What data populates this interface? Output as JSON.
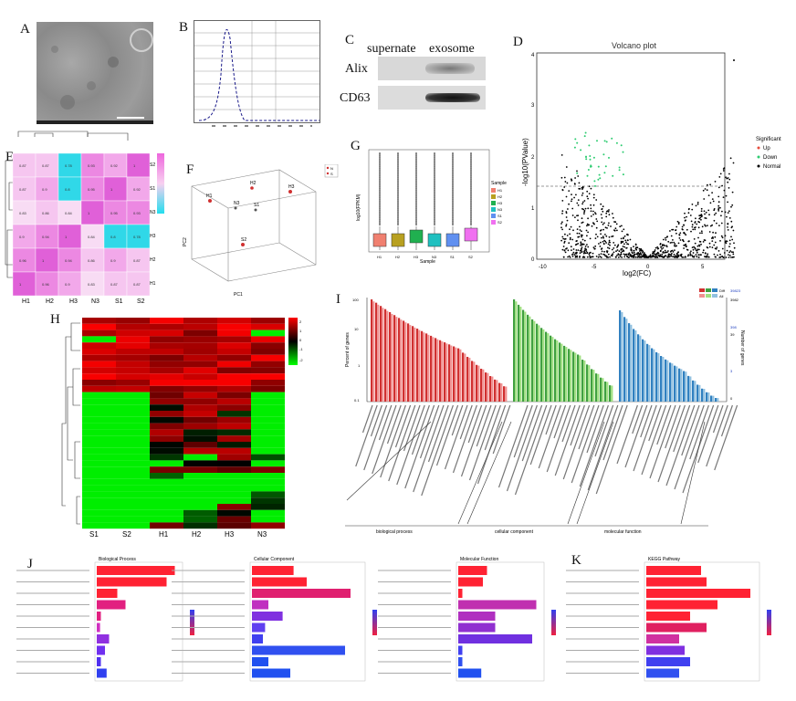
{
  "letters": {
    "A": "A",
    "B": "B",
    "C": "C",
    "D": "D",
    "E": "E",
    "F": "F",
    "G": "G",
    "H": "H",
    "I": "I",
    "J": "J",
    "K": "K"
  },
  "panel_c": {
    "columns": [
      "supernate",
      "exosome"
    ],
    "rows": [
      "Alix",
      "CD63"
    ]
  },
  "panel_d": {
    "title": "Volcano plot",
    "xlabel": "log2(FC)",
    "ylabel": "-log10(PValue)",
    "yticks": [
      "0",
      "1",
      "2",
      "3",
      "4"
    ],
    "xticks": [
      "-10",
      "-5",
      "0",
      "5"
    ],
    "legend_title": "Significant",
    "legend": [
      {
        "label": "Up",
        "color": "#e74c3c"
      },
      {
        "label": "Down",
        "color": "#2ecc71"
      },
      {
        "label": "Normal",
        "color": "#000000"
      }
    ]
  },
  "panel_e": {
    "col_labels": [
      "H1",
      "H2",
      "H3",
      "N3",
      "S1",
      "S2"
    ],
    "row_labels": [
      "S2",
      "S1",
      "N3",
      "H3",
      "H2",
      "H1"
    ],
    "cells": [
      [
        "0.87",
        "0.87",
        "0.78",
        "0.93",
        "0.92",
        "1"
      ],
      [
        "0.87",
        "0.9",
        "0.8",
        "0.95",
        "1",
        "0.92"
      ],
      [
        "0.83",
        "0.86",
        "0.84",
        "1",
        "0.95",
        "0.93"
      ],
      [
        "0.9",
        "0.94",
        "1",
        "0.84",
        "0.8",
        "0.78"
      ],
      [
        "0.96",
        "1",
        "0.94",
        "0.86",
        "0.9",
        "0.87"
      ],
      [
        "1",
        "0.96",
        "0.9",
        "0.83",
        "0.87",
        "0.87"
      ]
    ]
  },
  "panel_f": {
    "legend": [
      "N",
      "S"
    ],
    "xlabel": "PC1",
    "ylabel": "PC2",
    "points": [
      "H1",
      "H2",
      "H3",
      "N3",
      "S1",
      "S2"
    ]
  },
  "panel_g": {
    "xlabel": "Sample",
    "ylabel": "log10(FPKM)",
    "legend_title": "Sample",
    "samples": [
      "H1",
      "H2",
      "H3",
      "N3",
      "S1",
      "S2"
    ],
    "colors": [
      "#f08070",
      "#b8a020",
      "#20b050",
      "#20c0c0",
      "#6090f0",
      "#f070f0"
    ]
  },
  "panel_h": {
    "col_labels": [
      "S1",
      "S2",
      "H1",
      "H2",
      "H3",
      "N3"
    ],
    "scale": [
      "2",
      "1",
      "0",
      "-1",
      "-2"
    ]
  },
  "panel_i": {
    "legend": [
      "Diff",
      "All"
    ],
    "ylabel_left": "Percent of genes",
    "ylabel_right": "Number of genes",
    "left_ticks": [
      "100",
      "10",
      "1",
      "0.1"
    ],
    "right_ticks": [
      "39823",
      "3982",
      "398",
      "39",
      "3",
      "0"
    ],
    "categories": [
      "biological process",
      "cellular component",
      "molecular function"
    ]
  },
  "panel_j": [
    {
      "title": "Biological Process",
      "bars": [
        0.95,
        0.85,
        0.25,
        0.35,
        0.05,
        0.04,
        0.15,
        0.1,
        0.05,
        0.12
      ],
      "colors": [
        "#f23",
        "#f23",
        "#f23",
        "#e22080",
        "#e22080",
        "#d030c0",
        "#9030e0",
        "#7030f0",
        "#5030f0",
        "#3040f0"
      ]
    },
    {
      "title": "Cellular Component",
      "bars": [
        0.38,
        0.5,
        0.9,
        0.15,
        0.28,
        0.12,
        0.1,
        0.85,
        0.15,
        0.35
      ],
      "colors": [
        "#f23",
        "#f23",
        "#e02070",
        "#c030c0",
        "#8030e0",
        "#6040f0",
        "#4040f0",
        "#3050f0",
        "#2050f0",
        "#2050f0"
      ]
    },
    {
      "title": "Molecular Function",
      "bars": [
        0.35,
        0.3,
        0.05,
        0.95,
        0.45,
        0.45,
        0.9,
        0.05,
        0.05,
        0.28
      ],
      "colors": [
        "#f23",
        "#f23",
        "#f23",
        "#c030b0",
        "#b030c0",
        "#9030d0",
        "#7030e0",
        "#4040f0",
        "#3050f0",
        "#2050f0"
      ]
    }
  ],
  "panel_k": {
    "title": "KEGG Pathway",
    "bars": [
      0.5,
      0.55,
      0.95,
      0.65,
      0.4,
      0.55,
      0.3,
      0.35,
      0.4,
      0.3
    ],
    "colors": [
      "#f23",
      "#f23",
      "#f23",
      "#f23",
      "#f23",
      "#e02060",
      "#d030a0",
      "#8030e0",
      "#4040f0",
      "#3050f0"
    ]
  }
}
